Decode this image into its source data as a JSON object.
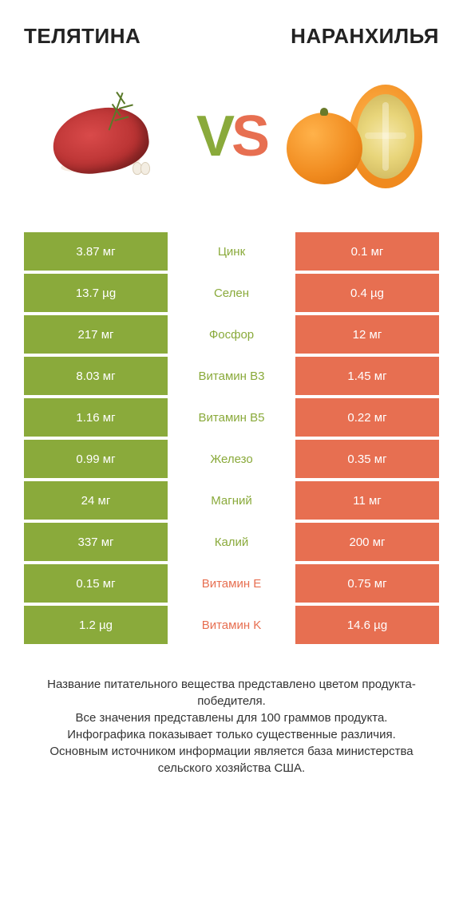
{
  "header": {
    "left": "ТЕЛЯТИНА",
    "right": "НАРАНХИЛЬЯ"
  },
  "vs": {
    "v": "V",
    "s": "S"
  },
  "colors": {
    "green": "#8aaa3b",
    "orange": "#e76f51"
  },
  "rows": [
    {
      "left": "3.87 мг",
      "mid": "Цинк",
      "right": "0.1 мг",
      "winner": "left"
    },
    {
      "left": "13.7 µg",
      "mid": "Селен",
      "right": "0.4 µg",
      "winner": "left"
    },
    {
      "left": "217 мг",
      "mid": "Фосфор",
      "right": "12 мг",
      "winner": "left"
    },
    {
      "left": "8.03 мг",
      "mid": "Витамин B3",
      "right": "1.45 мг",
      "winner": "left"
    },
    {
      "left": "1.16 мг",
      "mid": "Витамин B5",
      "right": "0.22 мг",
      "winner": "left"
    },
    {
      "left": "0.99 мг",
      "mid": "Железо",
      "right": "0.35 мг",
      "winner": "left"
    },
    {
      "left": "24 мг",
      "mid": "Магний",
      "right": "11 мг",
      "winner": "left"
    },
    {
      "left": "337 мг",
      "mid": "Калий",
      "right": "200 мг",
      "winner": "left"
    },
    {
      "left": "0.15 мг",
      "mid": "Витамин E",
      "right": "0.75 мг",
      "winner": "right"
    },
    {
      "left": "1.2 µg",
      "mid": "Витамин K",
      "right": "14.6 µg",
      "winner": "right"
    }
  ],
  "footer": "Название питательного вещества представлено цветом продукта-победителя.\nВсе значения представлены для 100 граммов продукта.\nИнфографика показывает только существенные различия.\nОсновным источником информации является база министерства сельского хозяйства США."
}
